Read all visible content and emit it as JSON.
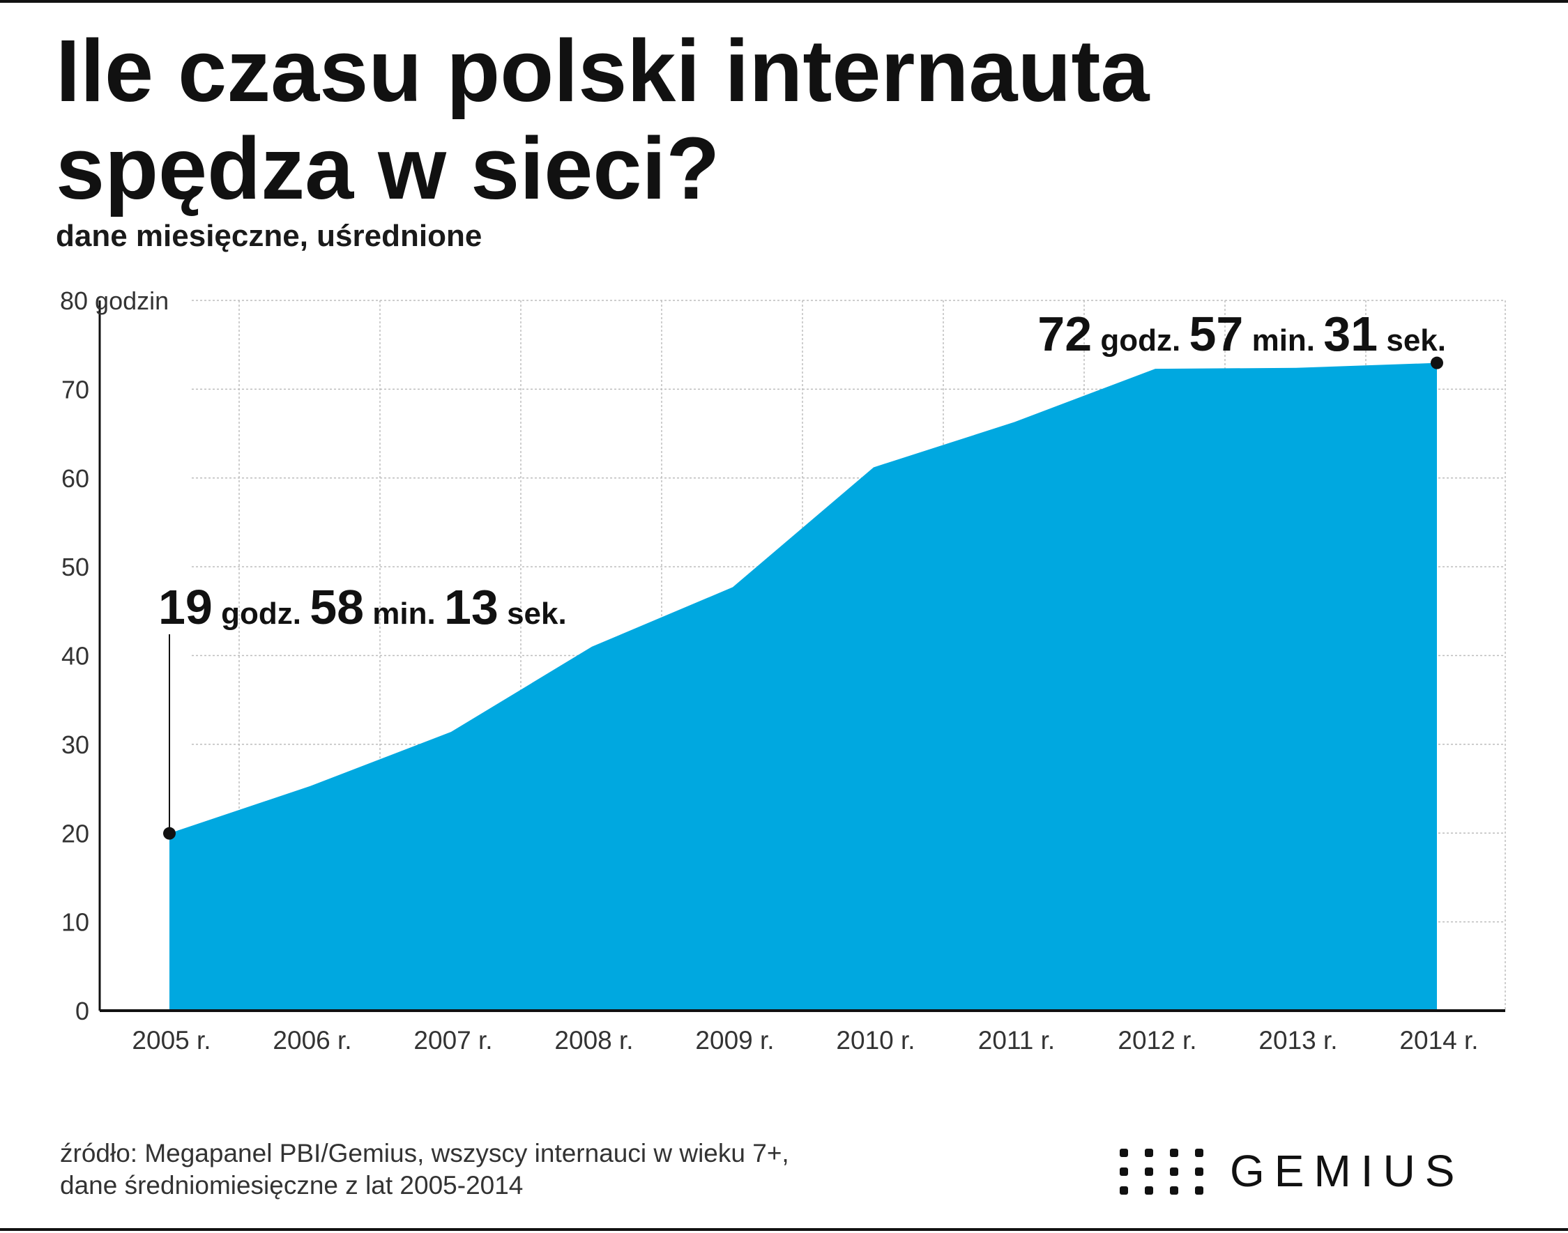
{
  "title": "Ile czasu polski internauta spędza w sieci?",
  "subtitle": "dane miesięczne, uśrednione",
  "source": {
    "line1": "źródło: Megapanel PBI/Gemius, wszyscy internauci w wieku 7+,",
    "line2": "dane średniomiesięczne z lat 2005-2014"
  },
  "logo": {
    "text": "GEMIUS",
    "icon": "dot-grid-logo-icon"
  },
  "colors": {
    "area": "#00a8e0",
    "text": "#111111",
    "grid": "#bdbdbd"
  },
  "chart_data": {
    "type": "area",
    "title": "Ile czasu polski internauta spędza w sieci?",
    "subtitle": "dane miesięczne, uśrednione",
    "ylabel": "",
    "y_unit_label": "godzin",
    "ylim": [
      0,
      80
    ],
    "yticks": [
      0,
      10,
      20,
      30,
      40,
      50,
      60,
      70,
      80
    ],
    "ytick_labels": [
      "0",
      "10",
      "20",
      "30",
      "40",
      "50",
      "60",
      "70",
      "80 godzin"
    ],
    "x": [
      2005,
      2006,
      2007,
      2008,
      2009,
      2010,
      2011,
      2012,
      2013,
      2014
    ],
    "xtick_labels": [
      "2005 r.",
      "2006 r.",
      "2007 r.",
      "2008 r.",
      "2009 r.",
      "2010 r.",
      "2011 r.",
      "2012 r.",
      "2013 r.",
      "2014 r."
    ],
    "values": [
      19.97,
      25.3,
      31.4,
      41.0,
      47.7,
      61.2,
      66.3,
      72.3,
      72.4,
      72.96
    ],
    "grid": true,
    "annotations": [
      {
        "x": 2005,
        "y": 19.97,
        "parts": [
          {
            "text": "19",
            "size": "big"
          },
          {
            "text": " godz. ",
            "size": "small"
          },
          {
            "text": "58",
            "size": "big"
          },
          {
            "text": " min. ",
            "size": "small"
          },
          {
            "text": "13",
            "size": "big"
          },
          {
            "text": " sek.",
            "size": "small"
          }
        ]
      },
      {
        "x": 2014,
        "y": 72.96,
        "parts": [
          {
            "text": "72",
            "size": "big"
          },
          {
            "text": " godz. ",
            "size": "small"
          },
          {
            "text": "57",
            "size": "big"
          },
          {
            "text": " min. ",
            "size": "small"
          },
          {
            "text": "31",
            "size": "big"
          },
          {
            "text": " sek.",
            "size": "small"
          }
        ]
      }
    ]
  }
}
